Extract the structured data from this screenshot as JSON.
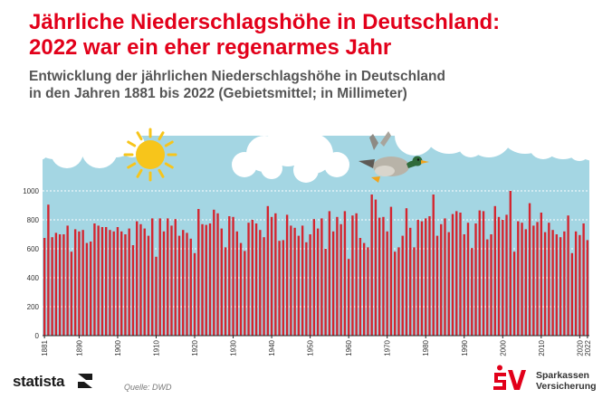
{
  "title_lines": [
    "Jährliche Niederschlagshöhe in Deutschland:",
    "2022 war ein eher regenarmes Jahr"
  ],
  "subtitle_lines": [
    "Entwicklung der jährlichen Niederschlagshöhe in Deutschland",
    "in den Jahren 1881 bis 2022 (Gebietsmittel; in Millimeter)"
  ],
  "footer": {
    "brand": "statista",
    "source": "Quelle: DWD",
    "partner_lines": [
      "Sparkassen",
      "Versicherung"
    ]
  },
  "colors": {
    "accent": "#e2001a",
    "bar": "#d4252f",
    "sky": "#a4d6e3",
    "sun": "#f7c51b"
  },
  "chart_data": {
    "type": "bar",
    "title": "Jährliche Niederschlagshöhe in Deutschland: 2022 war ein eher regenarmes Jahr",
    "xlabel": "",
    "ylabel": "",
    "unit": "mm",
    "ylim": [
      0,
      1000
    ],
    "yticks": [
      0,
      200,
      400,
      600,
      800,
      1000
    ],
    "grid": "dashed white gridlines",
    "xtick_labels": [
      "1881",
      "1890",
      "1900",
      "1910",
      "1920",
      "1930",
      "1940",
      "1950",
      "1960",
      "1970",
      "1980",
      "1990",
      "2000",
      "2010",
      "2020",
      "2022"
    ],
    "x_start": 1881,
    "values": [
      675,
      905,
      680,
      710,
      700,
      700,
      760,
      580,
      735,
      720,
      730,
      640,
      650,
      775,
      760,
      750,
      750,
      730,
      720,
      750,
      720,
      700,
      740,
      625,
      790,
      770,
      740,
      690,
      810,
      545,
      810,
      720,
      810,
      760,
      805,
      690,
      730,
      710,
      670,
      570,
      875,
      770,
      765,
      775,
      870,
      845,
      740,
      610,
      825,
      820,
      720,
      640,
      585,
      780,
      800,
      775,
      730,
      680,
      895,
      820,
      845,
      655,
      660,
      835,
      760,
      745,
      690,
      760,
      645,
      700,
      805,
      740,
      810,
      600,
      860,
      720,
      820,
      770,
      860,
      530,
      830,
      845,
      675,
      640,
      610,
      975,
      940,
      815,
      820,
      720,
      890,
      580,
      610,
      690,
      880,
      745,
      610,
      800,
      790,
      810,
      825,
      975,
      690,
      770,
      810,
      715,
      840,
      860,
      850,
      700,
      780,
      605,
      775,
      865,
      860,
      665,
      700,
      895,
      820,
      800,
      835,
      1000,
      580,
      790,
      780,
      735,
      915,
      760,
      785,
      850,
      715,
      780,
      730,
      700,
      680,
      720,
      830,
      570,
      720,
      695,
      775,
      660
    ]
  }
}
